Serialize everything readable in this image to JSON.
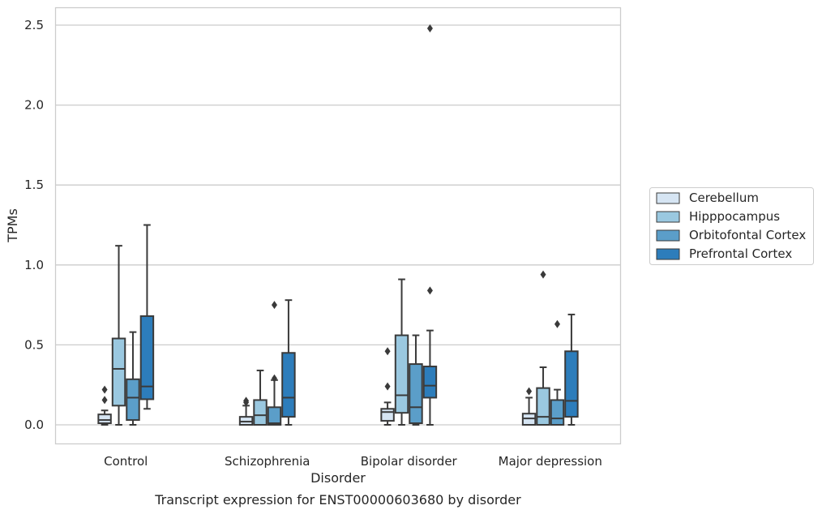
{
  "chart_data": {
    "type": "box",
    "title": "",
    "caption": "Transcript expression for ENST00000603680 by disorder",
    "xlabel": "Disorder",
    "ylabel": "TPMs",
    "ylim": [
      -0.12,
      2.62
    ],
    "yticks": [
      0.0,
      0.5,
      1.0,
      1.5,
      2.0,
      2.5
    ],
    "ytick_labels": [
      "0.0",
      "0.5",
      "1.0",
      "1.5",
      "2.0",
      "2.5"
    ],
    "grid": "horizontal",
    "legend_position": "right",
    "categories": [
      "Control",
      "Schizophrenia",
      "Bipolar disorder",
      "Major depression"
    ],
    "series": [
      {
        "name": "Cerebellum",
        "color": "#d6e5f3",
        "boxes": [
          {
            "whislo": 0.0,
            "q1": 0.01,
            "med": 0.03,
            "q3": 0.065,
            "whishi": 0.09,
            "fliers": [
              0.22,
              0.155
            ]
          },
          {
            "whislo": 0.0,
            "q1": 0.0,
            "med": 0.02,
            "q3": 0.05,
            "whishi": 0.12,
            "fliers": [
              0.15,
              0.14
            ]
          },
          {
            "whislo": 0.0,
            "q1": 0.025,
            "med": 0.08,
            "q3": 0.1,
            "whishi": 0.14,
            "fliers": [
              0.46,
              0.24
            ]
          },
          {
            "whislo": 0.0,
            "q1": 0.0,
            "med": 0.04,
            "q3": 0.07,
            "whishi": 0.17,
            "fliers": [
              0.21
            ]
          }
        ]
      },
      {
        "name": "Hipppocampus",
        "color": "#9ac8e0",
        "boxes": [
          {
            "whislo": 0.0,
            "q1": 0.12,
            "med": 0.35,
            "q3": 0.54,
            "whishi": 1.12,
            "fliers": []
          },
          {
            "whislo": 0.0,
            "q1": 0.0,
            "med": 0.06,
            "q3": 0.155,
            "whishi": 0.34,
            "fliers": []
          },
          {
            "whislo": 0.0,
            "q1": 0.075,
            "med": 0.185,
            "q3": 0.56,
            "whishi": 0.91,
            "fliers": []
          },
          {
            "whislo": 0.0,
            "q1": 0.0,
            "med": 0.05,
            "q3": 0.23,
            "whishi": 0.36,
            "fliers": [
              0.94
            ]
          }
        ]
      },
      {
        "name": "Orbitofontal Cortex",
        "color": "#5b9ec9",
        "boxes": [
          {
            "whislo": 0.0,
            "q1": 0.03,
            "med": 0.17,
            "q3": 0.285,
            "whishi": 0.58,
            "fliers": []
          },
          {
            "whislo": 0.0,
            "q1": 0.0,
            "med": 0.01,
            "q3": 0.11,
            "whishi": 0.28,
            "fliers": [
              0.75,
              0.29
            ]
          },
          {
            "whislo": 0.0,
            "q1": 0.01,
            "med": 0.11,
            "q3": 0.38,
            "whishi": 0.56,
            "fliers": []
          },
          {
            "whislo": 0.0,
            "q1": 0.0,
            "med": 0.04,
            "q3": 0.155,
            "whishi": 0.22,
            "fliers": [
              0.63
            ]
          }
        ]
      },
      {
        "name": "Prefrontal Cortex",
        "color": "#2d7dbb",
        "boxes": [
          {
            "whislo": 0.1,
            "q1": 0.16,
            "med": 0.24,
            "q3": 0.68,
            "whishi": 1.25,
            "fliers": []
          },
          {
            "whislo": 0.0,
            "q1": 0.05,
            "med": 0.17,
            "q3": 0.45,
            "whishi": 0.78,
            "fliers": []
          },
          {
            "whislo": 0.0,
            "q1": 0.17,
            "med": 0.245,
            "q3": 0.365,
            "whishi": 0.59,
            "fliers": [
              2.48,
              0.84
            ]
          },
          {
            "whislo": 0.0,
            "q1": 0.05,
            "med": 0.15,
            "q3": 0.46,
            "whishi": 0.69,
            "fliers": []
          }
        ]
      }
    ]
  }
}
